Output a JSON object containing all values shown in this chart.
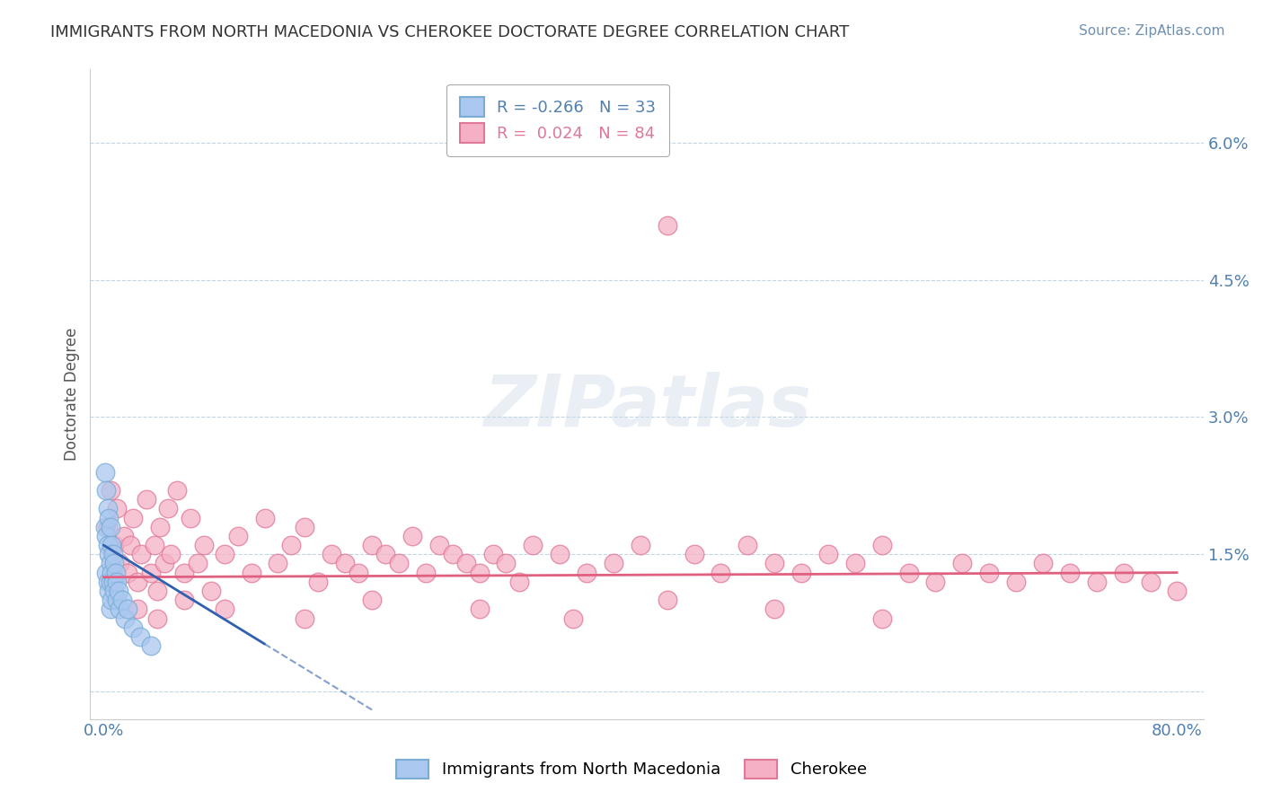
{
  "title": "IMMIGRANTS FROM NORTH MACEDONIA VS CHEROKEE DOCTORATE DEGREE CORRELATION CHART",
  "source": "Source: ZipAtlas.com",
  "ylabel": "Doctorate Degree",
  "xlim": [
    -0.01,
    0.82
  ],
  "ylim": [
    -0.003,
    0.068
  ],
  "yticks": [
    0.0,
    0.015,
    0.03,
    0.045,
    0.06
  ],
  "ytick_labels": [
    "",
    "1.5%",
    "3.0%",
    "4.5%",
    "6.0%"
  ],
  "xticks": [
    0.0,
    0.8
  ],
  "xtick_labels": [
    "0.0%",
    "80.0%"
  ],
  "legend_entry1": "R = -0.266   N = 33",
  "legend_entry2": "R =  0.024   N = 84",
  "legend_label1": "Immigrants from North Macedonia",
  "legend_label2": "Cherokee",
  "blue_color": "#aac8f0",
  "blue_edge": "#7aacd4",
  "pink_color": "#f5b0c5",
  "pink_edge": "#e07898",
  "blue_trend_color": "#3060b0",
  "pink_trend_color": "#e06080",
  "grid_color": "#b0cce0",
  "title_color": "#333333",
  "axis_tick_color": "#5080b0",
  "blue_scatter_x": [
    0.001,
    0.001,
    0.002,
    0.002,
    0.002,
    0.003,
    0.003,
    0.003,
    0.004,
    0.004,
    0.004,
    0.005,
    0.005,
    0.005,
    0.005,
    0.006,
    0.006,
    0.006,
    0.007,
    0.007,
    0.008,
    0.008,
    0.009,
    0.01,
    0.01,
    0.011,
    0.012,
    0.014,
    0.016,
    0.018,
    0.022,
    0.027,
    0.035
  ],
  "blue_scatter_y": [
    0.024,
    0.018,
    0.022,
    0.017,
    0.013,
    0.02,
    0.016,
    0.012,
    0.019,
    0.015,
    0.011,
    0.018,
    0.014,
    0.012,
    0.009,
    0.016,
    0.013,
    0.01,
    0.015,
    0.012,
    0.014,
    0.011,
    0.013,
    0.012,
    0.01,
    0.011,
    0.009,
    0.01,
    0.008,
    0.009,
    0.007,
    0.006,
    0.005
  ],
  "pink_scatter_x": [
    0.003,
    0.005,
    0.008,
    0.01,
    0.012,
    0.015,
    0.018,
    0.02,
    0.022,
    0.025,
    0.028,
    0.032,
    0.035,
    0.038,
    0.04,
    0.042,
    0.045,
    0.048,
    0.05,
    0.055,
    0.06,
    0.065,
    0.07,
    0.075,
    0.08,
    0.09,
    0.1,
    0.11,
    0.12,
    0.13,
    0.14,
    0.15,
    0.16,
    0.17,
    0.18,
    0.19,
    0.2,
    0.21,
    0.22,
    0.23,
    0.24,
    0.25,
    0.26,
    0.27,
    0.28,
    0.29,
    0.3,
    0.31,
    0.32,
    0.34,
    0.36,
    0.38,
    0.4,
    0.42,
    0.44,
    0.46,
    0.48,
    0.5,
    0.52,
    0.54,
    0.56,
    0.58,
    0.6,
    0.62,
    0.64,
    0.66,
    0.68,
    0.7,
    0.72,
    0.74,
    0.76,
    0.78,
    0.8,
    0.025,
    0.04,
    0.06,
    0.09,
    0.15,
    0.2,
    0.28,
    0.35,
    0.42,
    0.5,
    0.58
  ],
  "pink_scatter_y": [
    0.018,
    0.022,
    0.016,
    0.02,
    0.014,
    0.017,
    0.013,
    0.016,
    0.019,
    0.012,
    0.015,
    0.021,
    0.013,
    0.016,
    0.011,
    0.018,
    0.014,
    0.02,
    0.015,
    0.022,
    0.013,
    0.019,
    0.014,
    0.016,
    0.011,
    0.015,
    0.017,
    0.013,
    0.019,
    0.014,
    0.016,
    0.018,
    0.012,
    0.015,
    0.014,
    0.013,
    0.016,
    0.015,
    0.014,
    0.017,
    0.013,
    0.016,
    0.015,
    0.014,
    0.013,
    0.015,
    0.014,
    0.012,
    0.016,
    0.015,
    0.013,
    0.014,
    0.016,
    0.051,
    0.015,
    0.013,
    0.016,
    0.014,
    0.013,
    0.015,
    0.014,
    0.016,
    0.013,
    0.012,
    0.014,
    0.013,
    0.012,
    0.014,
    0.013,
    0.012,
    0.013,
    0.012,
    0.011,
    0.009,
    0.008,
    0.01,
    0.009,
    0.008,
    0.01,
    0.009,
    0.008,
    0.01,
    0.009,
    0.008
  ],
  "blue_trend_x0": 0.0,
  "blue_trend_y0": 0.016,
  "blue_trend_x1": 0.2,
  "blue_trend_y1": -0.002,
  "pink_trend_x0": 0.0,
  "pink_trend_y0": 0.0125,
  "pink_trend_x1": 0.8,
  "pink_trend_y1": 0.013
}
